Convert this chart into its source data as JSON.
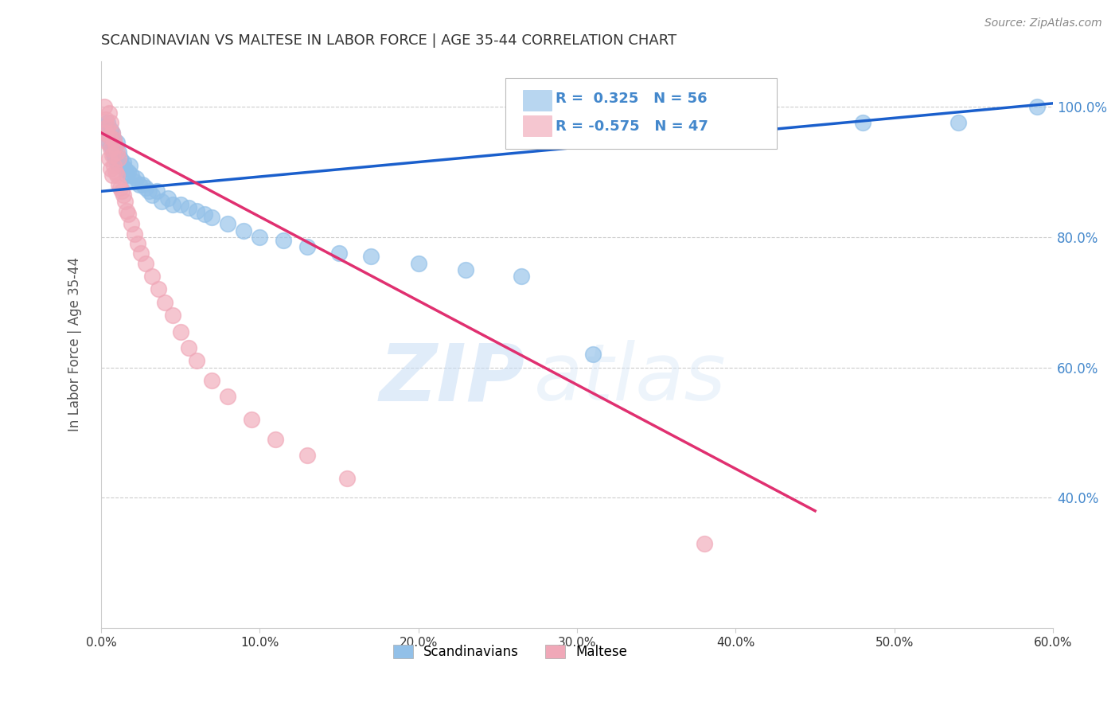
{
  "title": "SCANDINAVIAN VS MALTESE IN LABOR FORCE | AGE 35-44 CORRELATION CHART",
  "source": "Source: ZipAtlas.com",
  "ylabel": "In Labor Force | Age 35-44",
  "xlim": [
    0.0,
    0.6
  ],
  "ylim": [
    0.2,
    1.07
  ],
  "xtick_labels": [
    "0.0%",
    "10.0%",
    "20.0%",
    "30.0%",
    "40.0%",
    "50.0%",
    "60.0%"
  ],
  "xtick_values": [
    0.0,
    0.1,
    0.2,
    0.3,
    0.4,
    0.5,
    0.6
  ],
  "ytick_labels": [
    "40.0%",
    "60.0%",
    "80.0%",
    "100.0%"
  ],
  "ytick_values": [
    0.4,
    0.6,
    0.8,
    1.0
  ],
  "grid_color": "#cccccc",
  "background_color": "#ffffff",
  "watermark_zip": "ZIP",
  "watermark_atlas": "atlas",
  "legend_R_scandinavian": "0.325",
  "legend_N_scandinavian": "56",
  "legend_R_maltese": "-0.575",
  "legend_N_maltese": "47",
  "scandinavian_color": "#92c0e8",
  "maltese_color": "#f0a8b8",
  "line_scandinavian_color": "#1a5fcc",
  "line_maltese_color": "#e03070",
  "title_color": "#333333",
  "axis_label_color": "#555555",
  "tick_color": "#333333",
  "right_tick_color": "#4488cc",
  "scandinavian_x": [
    0.002,
    0.003,
    0.004,
    0.005,
    0.005,
    0.006,
    0.006,
    0.007,
    0.007,
    0.008,
    0.008,
    0.009,
    0.009,
    0.01,
    0.01,
    0.011,
    0.012,
    0.013,
    0.014,
    0.015,
    0.016,
    0.017,
    0.018,
    0.019,
    0.021,
    0.022,
    0.024,
    0.026,
    0.028,
    0.03,
    0.032,
    0.035,
    0.038,
    0.042,
    0.045,
    0.05,
    0.055,
    0.06,
    0.065,
    0.07,
    0.08,
    0.09,
    0.1,
    0.115,
    0.13,
    0.15,
    0.17,
    0.2,
    0.23,
    0.265,
    0.31,
    0.36,
    0.42,
    0.48,
    0.54,
    0.59
  ],
  "scandinavian_y": [
    0.97,
    0.96,
    0.975,
    0.955,
    0.945,
    0.965,
    0.94,
    0.96,
    0.935,
    0.95,
    0.925,
    0.94,
    0.92,
    0.945,
    0.915,
    0.93,
    0.92,
    0.91,
    0.915,
    0.905,
    0.895,
    0.9,
    0.91,
    0.895,
    0.885,
    0.89,
    0.88,
    0.88,
    0.875,
    0.87,
    0.865,
    0.87,
    0.855,
    0.86,
    0.85,
    0.85,
    0.845,
    0.84,
    0.835,
    0.83,
    0.82,
    0.81,
    0.8,
    0.795,
    0.785,
    0.775,
    0.77,
    0.76,
    0.75,
    0.74,
    0.62,
    0.97,
    0.97,
    0.975,
    0.975,
    1.0
  ],
  "maltese_x": [
    0.002,
    0.003,
    0.003,
    0.004,
    0.004,
    0.005,
    0.005,
    0.005,
    0.006,
    0.006,
    0.006,
    0.007,
    0.007,
    0.007,
    0.008,
    0.008,
    0.009,
    0.009,
    0.01,
    0.01,
    0.011,
    0.011,
    0.012,
    0.013,
    0.014,
    0.015,
    0.016,
    0.017,
    0.019,
    0.021,
    0.023,
    0.025,
    0.028,
    0.032,
    0.036,
    0.04,
    0.045,
    0.05,
    0.055,
    0.06,
    0.07,
    0.08,
    0.095,
    0.11,
    0.13,
    0.155,
    0.38
  ],
  "maltese_y": [
    1.0,
    0.98,
    0.96,
    0.97,
    0.945,
    0.99,
    0.955,
    0.92,
    0.975,
    0.935,
    0.905,
    0.96,
    0.925,
    0.895,
    0.95,
    0.91,
    0.94,
    0.9,
    0.93,
    0.895,
    0.92,
    0.88,
    0.875,
    0.87,
    0.865,
    0.855,
    0.84,
    0.835,
    0.82,
    0.805,
    0.79,
    0.775,
    0.76,
    0.74,
    0.72,
    0.7,
    0.68,
    0.655,
    0.63,
    0.61,
    0.58,
    0.555,
    0.52,
    0.49,
    0.465,
    0.43,
    0.33
  ],
  "scand_line_x": [
    0.0,
    0.6
  ],
  "scand_line_y": [
    0.87,
    1.005
  ],
  "malt_line_x": [
    0.0,
    0.45
  ],
  "malt_line_y": [
    0.96,
    0.38
  ]
}
